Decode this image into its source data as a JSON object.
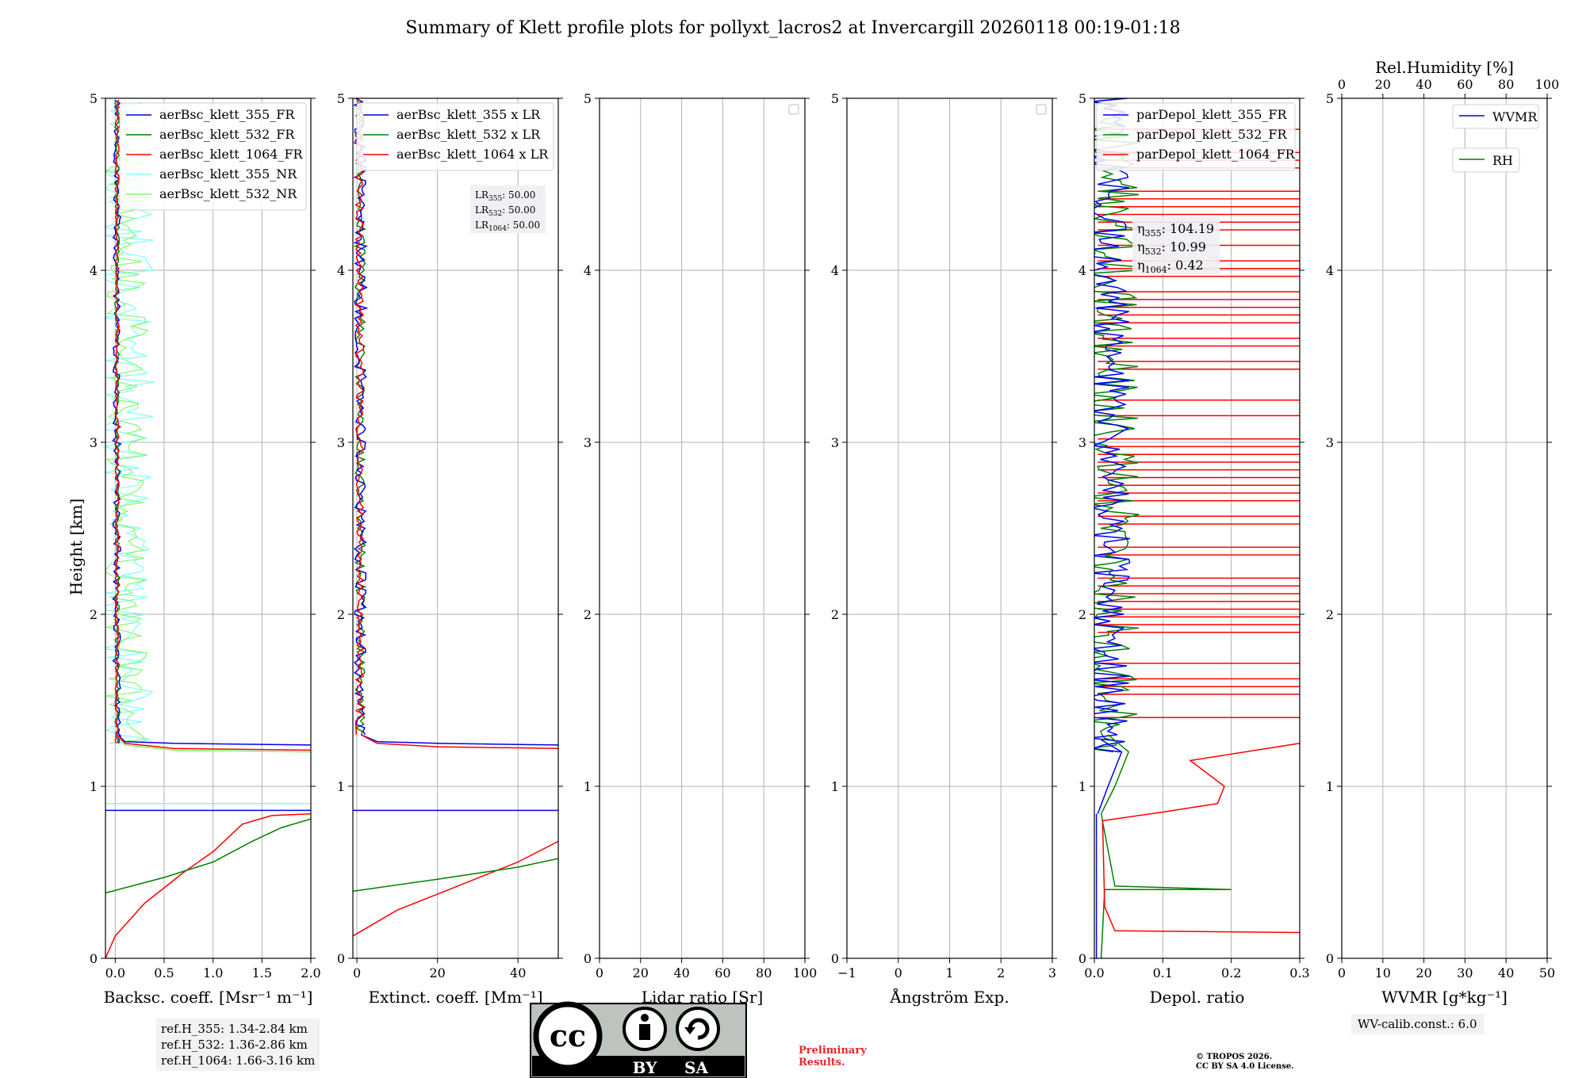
{
  "title": "Summary of Klett profile plots for pollyxt_lacros2 at Invercargill 20260118 00:19-01:18",
  "ylabel": "Height [km]",
  "colors": {
    "blue": "#0000ee",
    "green": "#008000",
    "red": "#ff0000",
    "cyan": "#7fffff",
    "lightgreen": "#7dff6e"
  },
  "ref_heights": [
    "ref.H_355: 1.34-2.84 km",
    "ref.H_532: 1.36-2.86 km",
    "ref.H_1064: 1.66-3.16 km"
  ],
  "lidar_ratio_box": {
    "lr355": "50.00",
    "lr532": "50.00",
    "lr1064": "50.00"
  },
  "eta_box": {
    "e355": "104.19",
    "e532": "10.99",
    "e1064": "0.42"
  },
  "wv_calib": "WV-calib.const.: 6.0",
  "preliminary": [
    "Preliminary",
    "Results."
  ],
  "copyright": [
    "© TROPOS 2026.",
    "CC BY SA 4.0 License."
  ],
  "license_badge": {
    "cc": "cc",
    "by": "BY",
    "sa": "SA"
  },
  "chart_data": [
    {
      "type": "line",
      "title": "",
      "xlabel": "Backsc. coeff. [Msr⁻¹ m⁻¹]",
      "ylabel": "Height [km]",
      "xlim": [
        -0.1,
        2.0
      ],
      "ylim": [
        0,
        5
      ],
      "xticks": [
        0.0,
        0.5,
        1.0,
        1.5,
        2.0
      ],
      "xticklabels": [
        "0.0",
        "0.5",
        "1.0",
        "1.5",
        "2.0"
      ],
      "yticks": [
        0,
        1,
        2,
        3,
        4,
        5
      ],
      "legend": "top-right",
      "series": [
        {
          "name": "aerBsc_klett_355_FR",
          "color": "#0000ee"
        },
        {
          "name": "aerBsc_klett_532_FR",
          "color": "#008000"
        },
        {
          "name": "aerBsc_klett_1064_FR",
          "color": "#ff0000"
        },
        {
          "name": "aerBsc_klett_355_NR",
          "color": "#7fffff"
        },
        {
          "name": "aerBsc_klett_532_NR",
          "color": "#7dff6e"
        }
      ]
    },
    {
      "type": "line",
      "title": "",
      "xlabel": "Extinct. coeff. [Mm⁻¹]",
      "xlim": [
        -1,
        50
      ],
      "ylim": [
        0,
        5
      ],
      "xticks": [
        0,
        20,
        40
      ],
      "xticklabels": [
        "0",
        "20",
        "40"
      ],
      "yticks": [
        0,
        1,
        2,
        3,
        4,
        5
      ],
      "legend": "top-right",
      "series": [
        {
          "name": "aerBsc_klett_355 x LR",
          "color": "#0000ee"
        },
        {
          "name": "aerBsc_klett_532 x LR",
          "color": "#008000"
        },
        {
          "name": "aerBsc_klett_1064 x LR",
          "color": "#ff0000"
        }
      ]
    },
    {
      "type": "line",
      "title": "",
      "xlabel": "Lidar ratio [Sr]",
      "xlim": [
        0,
        100
      ],
      "ylim": [
        0,
        5
      ],
      "xticks": [
        0,
        20,
        40,
        60,
        80,
        100
      ],
      "xticklabels": [
        "0",
        "20",
        "40",
        "60",
        "80",
        "100"
      ],
      "yticks": [
        0,
        1,
        2,
        3,
        4,
        5
      ],
      "series": []
    },
    {
      "type": "line",
      "title": "",
      "xlabel": "Ångström Exp.",
      "xlim": [
        -1,
        3
      ],
      "ylim": [
        0,
        5
      ],
      "xticks": [
        -1,
        0,
        1,
        2,
        3
      ],
      "xticklabels": [
        "−1",
        "0",
        "1",
        "2",
        "3"
      ],
      "yticks": [
        0,
        1,
        2,
        3,
        4,
        5
      ],
      "series": []
    },
    {
      "type": "line",
      "title": "",
      "xlabel": "Depol. ratio",
      "xlim": [
        0,
        0.3
      ],
      "ylim": [
        0,
        5
      ],
      "xticks": [
        0.0,
        0.1,
        0.2,
        0.3
      ],
      "xticklabels": [
        "0.0",
        "0.1",
        "0.2",
        "0.3"
      ],
      "yticks": [
        0,
        1,
        2,
        3,
        4,
        5
      ],
      "legend": "top-right",
      "series": [
        {
          "name": "parDepol_klett_355_FR",
          "color": "#0000ee"
        },
        {
          "name": "parDepol_klett_532_FR",
          "color": "#008000"
        },
        {
          "name": "parDepol_klett_1064_FR",
          "color": "#ff0000"
        }
      ]
    },
    {
      "type": "line",
      "title": "",
      "xlabel": "WVMR [g*kg⁻¹]",
      "top_xlabel": "Rel.Humidity [%]",
      "xlim": [
        0,
        50
      ],
      "ylim": [
        0,
        5
      ],
      "xticks": [
        0,
        10,
        20,
        30,
        40,
        50
      ],
      "xticklabels": [
        "0",
        "10",
        "20",
        "30",
        "40",
        "50"
      ],
      "top_xlim": [
        0,
        100
      ],
      "top_xticks": [
        0,
        20,
        40,
        60,
        80,
        100
      ],
      "top_xticklabels": [
        "0",
        "20",
        "40",
        "60",
        "80",
        "100"
      ],
      "yticks": [
        0,
        1,
        2,
        3,
        4,
        5
      ],
      "series": [
        {
          "name": "WVMR",
          "color": "#0000ee"
        },
        {
          "name": "RH",
          "color": "#008000"
        }
      ]
    }
  ]
}
